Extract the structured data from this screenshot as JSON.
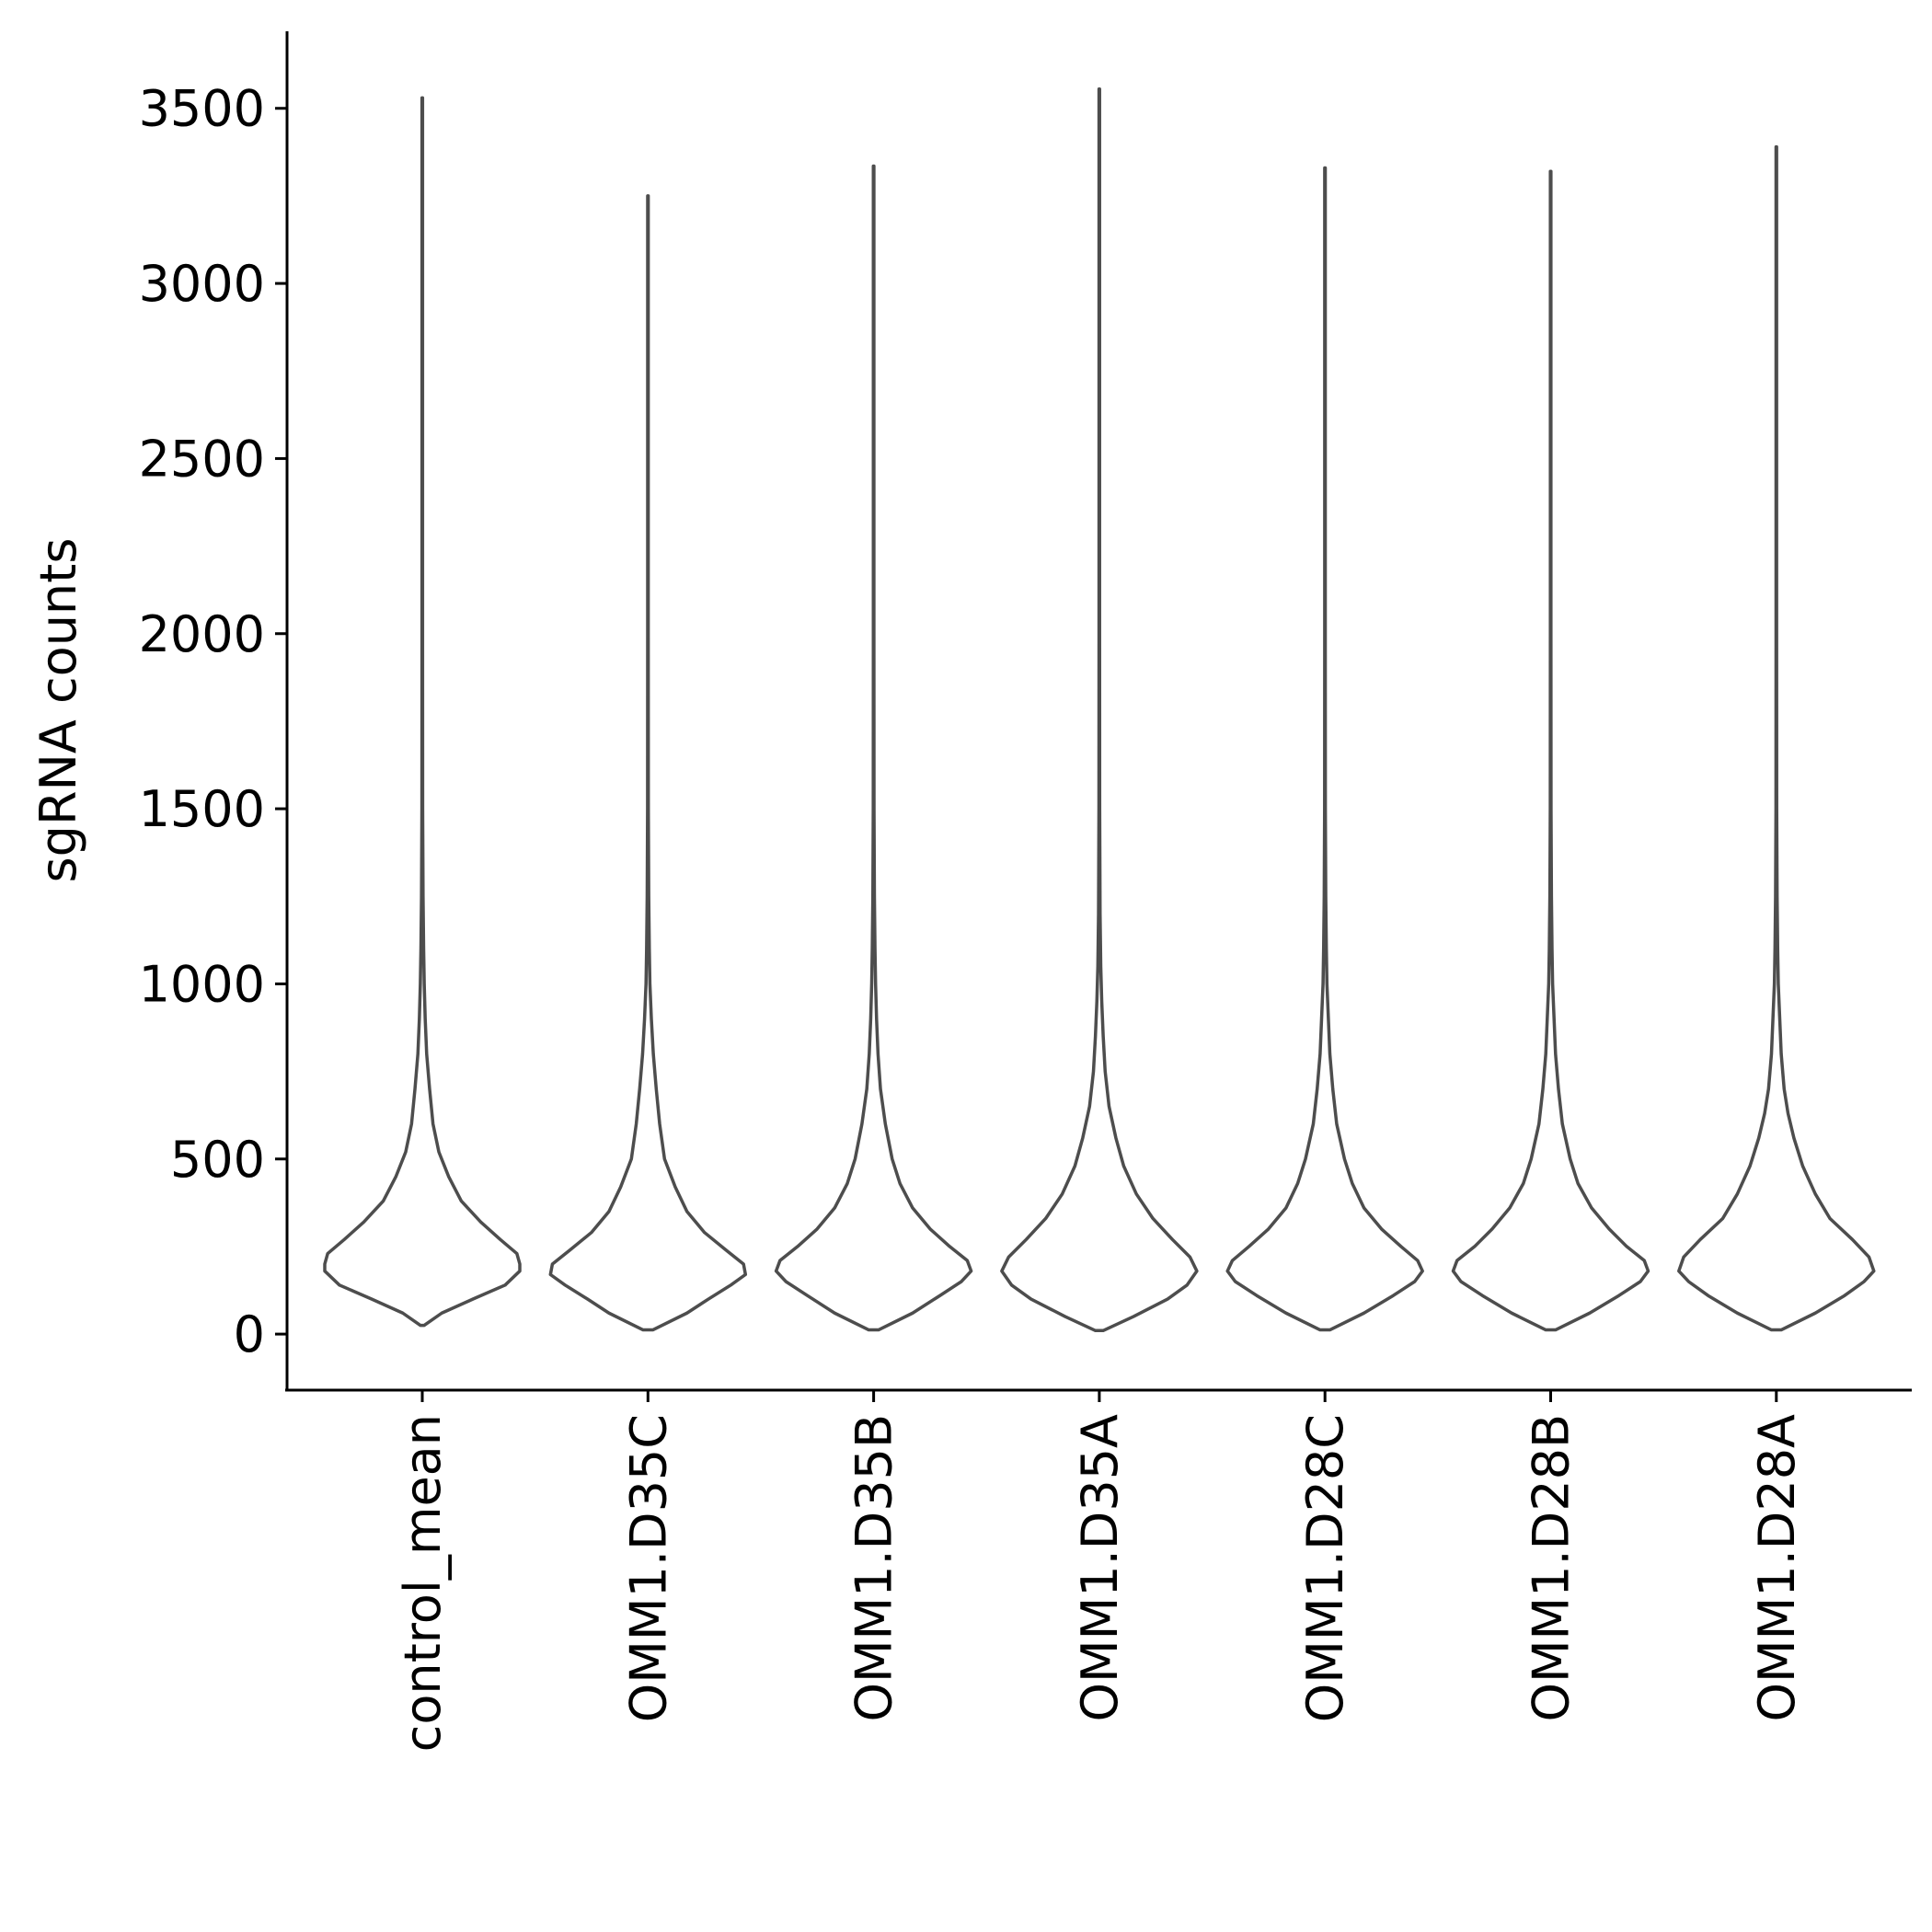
{
  "chart_data": {
    "type": "violin",
    "ylabel": "sgRNA counts",
    "xlabel": "",
    "ylim": [
      -160,
      3720
    ],
    "y_ticks": [
      "0",
      "500",
      "1000",
      "1500",
      "2000",
      "2500",
      "3000",
      "3500"
    ],
    "categories": [
      "control_mean",
      "OMM1.D35C",
      "OMM1.D35B",
      "OMM1.D35A",
      "OMM1.D28C",
      "OMM1.D28B",
      "OMM1.D28A"
    ],
    "series": [
      {
        "category": "control_mean",
        "min": 25,
        "max": 3530,
        "profile": [
          [
            25,
            0.02
          ],
          [
            60,
            0.2
          ],
          [
            100,
            0.52
          ],
          [
            140,
            0.85
          ],
          [
            180,
            1.0
          ],
          [
            200,
            1.0
          ],
          [
            230,
            0.97
          ],
          [
            270,
            0.8
          ],
          [
            320,
            0.6
          ],
          [
            380,
            0.4
          ],
          [
            450,
            0.27
          ],
          [
            520,
            0.17
          ],
          [
            600,
            0.11
          ],
          [
            700,
            0.075
          ],
          [
            800,
            0.045
          ],
          [
            900,
            0.03
          ],
          [
            1000,
            0.02
          ],
          [
            1100,
            0.014
          ],
          [
            1250,
            0.008
          ],
          [
            1500,
            0.004
          ],
          [
            2000,
            0.003
          ],
          [
            3530,
            0.003
          ]
        ]
      },
      {
        "category": "OMM1.D35C",
        "min": 12,
        "max": 3250,
        "profile": [
          [
            12,
            0.05
          ],
          [
            60,
            0.4
          ],
          [
            100,
            0.62
          ],
          [
            140,
            0.85
          ],
          [
            170,
            1.0
          ],
          [
            200,
            0.98
          ],
          [
            240,
            0.8
          ],
          [
            290,
            0.58
          ],
          [
            350,
            0.4
          ],
          [
            420,
            0.28
          ],
          [
            500,
            0.17
          ],
          [
            600,
            0.12
          ],
          [
            700,
            0.085
          ],
          [
            800,
            0.055
          ],
          [
            900,
            0.035
          ],
          [
            1000,
            0.02
          ],
          [
            1100,
            0.014
          ],
          [
            1250,
            0.008
          ],
          [
            1500,
            0.004
          ],
          [
            2000,
            0.003
          ],
          [
            3250,
            0.003
          ]
        ]
      },
      {
        "category": "OMM1.D35B",
        "min": 12,
        "max": 3335,
        "profile": [
          [
            12,
            0.05
          ],
          [
            60,
            0.4
          ],
          [
            110,
            0.68
          ],
          [
            150,
            0.9
          ],
          [
            180,
            1.0
          ],
          [
            210,
            0.96
          ],
          [
            250,
            0.78
          ],
          [
            300,
            0.58
          ],
          [
            360,
            0.4
          ],
          [
            430,
            0.27
          ],
          [
            500,
            0.19
          ],
          [
            600,
            0.12
          ],
          [
            700,
            0.07
          ],
          [
            800,
            0.045
          ],
          [
            900,
            0.03
          ],
          [
            1000,
            0.02
          ],
          [
            1100,
            0.014
          ],
          [
            1250,
            0.008
          ],
          [
            1500,
            0.004
          ],
          [
            2000,
            0.003
          ],
          [
            3335,
            0.003
          ]
        ]
      },
      {
        "category": "OMM1.D35A",
        "min": 10,
        "max": 3555,
        "profile": [
          [
            10,
            0.04
          ],
          [
            50,
            0.35
          ],
          [
            100,
            0.7
          ],
          [
            140,
            0.9
          ],
          [
            180,
            1.0
          ],
          [
            220,
            0.93
          ],
          [
            270,
            0.75
          ],
          [
            330,
            0.55
          ],
          [
            400,
            0.38
          ],
          [
            480,
            0.25
          ],
          [
            560,
            0.17
          ],
          [
            650,
            0.1
          ],
          [
            750,
            0.06
          ],
          [
            850,
            0.04
          ],
          [
            950,
            0.025
          ],
          [
            1050,
            0.015
          ],
          [
            1200,
            0.008
          ],
          [
            1500,
            0.004
          ],
          [
            2000,
            0.003
          ],
          [
            3555,
            0.003
          ]
        ]
      },
      {
        "category": "OMM1.D28C",
        "min": 12,
        "max": 3330,
        "profile": [
          [
            12,
            0.05
          ],
          [
            60,
            0.4
          ],
          [
            110,
            0.7
          ],
          [
            150,
            0.92
          ],
          [
            180,
            1.0
          ],
          [
            210,
            0.95
          ],
          [
            250,
            0.78
          ],
          [
            300,
            0.58
          ],
          [
            360,
            0.4
          ],
          [
            430,
            0.28
          ],
          [
            500,
            0.2
          ],
          [
            600,
            0.12
          ],
          [
            700,
            0.08
          ],
          [
            800,
            0.05
          ],
          [
            900,
            0.035
          ],
          [
            1000,
            0.02
          ],
          [
            1100,
            0.014
          ],
          [
            1250,
            0.008
          ],
          [
            1500,
            0.004
          ],
          [
            2000,
            0.003
          ],
          [
            3330,
            0.003
          ]
        ]
      },
      {
        "category": "OMM1.D28B",
        "min": 12,
        "max": 3320,
        "profile": [
          [
            12,
            0.05
          ],
          [
            60,
            0.4
          ],
          [
            110,
            0.7
          ],
          [
            150,
            0.92
          ],
          [
            180,
            1.0
          ],
          [
            210,
            0.96
          ],
          [
            250,
            0.78
          ],
          [
            300,
            0.6
          ],
          [
            360,
            0.42
          ],
          [
            430,
            0.28
          ],
          [
            500,
            0.2
          ],
          [
            600,
            0.12
          ],
          [
            700,
            0.08
          ],
          [
            800,
            0.05
          ],
          [
            900,
            0.035
          ],
          [
            1000,
            0.02
          ],
          [
            1100,
            0.014
          ],
          [
            1250,
            0.008
          ],
          [
            1500,
            0.004
          ],
          [
            2000,
            0.003
          ],
          [
            3320,
            0.003
          ]
        ]
      },
      {
        "category": "OMM1.D28A",
        "min": 12,
        "max": 3390,
        "profile": [
          [
            12,
            0.05
          ],
          [
            60,
            0.4
          ],
          [
            110,
            0.7
          ],
          [
            150,
            0.9
          ],
          [
            180,
            1.0
          ],
          [
            220,
            0.95
          ],
          [
            270,
            0.78
          ],
          [
            330,
            0.55
          ],
          [
            400,
            0.4
          ],
          [
            480,
            0.27
          ],
          [
            560,
            0.18
          ],
          [
            630,
            0.12
          ],
          [
            700,
            0.08
          ],
          [
            800,
            0.05
          ],
          [
            900,
            0.035
          ],
          [
            1000,
            0.02
          ],
          [
            1100,
            0.014
          ],
          [
            1250,
            0.008
          ],
          [
            1500,
            0.004
          ],
          [
            2000,
            0.003
          ],
          [
            3390,
            0.003
          ]
        ]
      }
    ]
  }
}
